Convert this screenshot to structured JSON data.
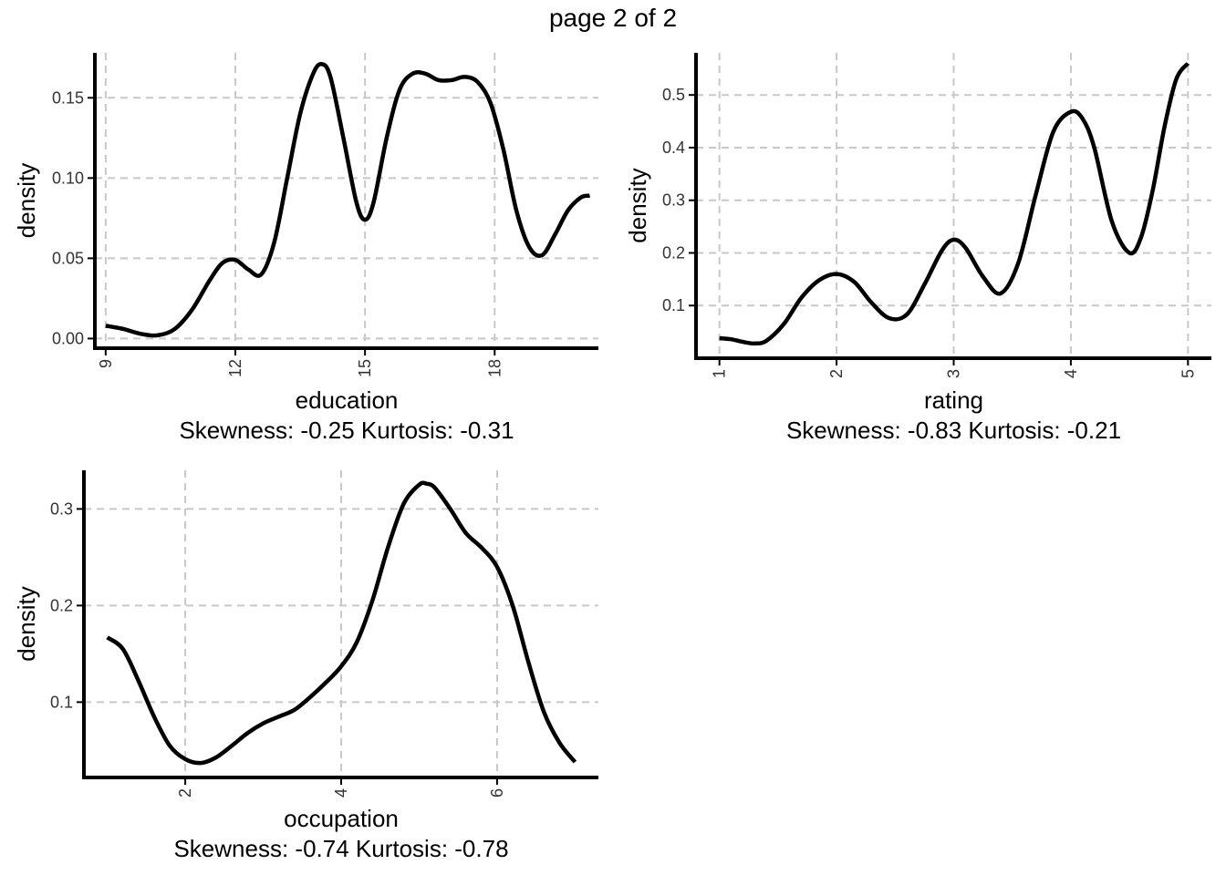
{
  "page": {
    "title": "page 2 of 2"
  },
  "style": {
    "line_color": "#000000",
    "grid_color": "#c8c8c8",
    "axis_color": "#000000",
    "tick_label_color": "#333333",
    "background": "#ffffff"
  },
  "chart_data": [
    {
      "type": "line",
      "title": "",
      "xlabel": "education",
      "ylabel": "density",
      "caption": "Skewness: -0.25 Kurtosis: -0.31",
      "xlim": [
        8.75,
        20.4
      ],
      "ylim": [
        -0.006,
        0.178
      ],
      "xticks": [
        9,
        12,
        15,
        18
      ],
      "xtick_labels": [
        "9",
        "12",
        "15",
        "18"
      ],
      "xtick_rotation": -90,
      "yticks": [
        0.0,
        0.05,
        0.1,
        0.15
      ],
      "ytick_labels": [
        "0.00",
        "0.05",
        "0.10",
        "0.15"
      ],
      "grid": true,
      "grid_style": "dashed",
      "series": [
        {
          "x": [
            9.0,
            9.4,
            9.8,
            10.2,
            10.6,
            11.0,
            11.4,
            11.7,
            12.0,
            12.3,
            12.6,
            12.9,
            13.2,
            13.5,
            13.8,
            14.0,
            14.2,
            14.5,
            14.8,
            15.0,
            15.2,
            15.5,
            15.8,
            16.1,
            16.4,
            16.7,
            17.0,
            17.3,
            17.6,
            17.9,
            18.2,
            18.5,
            18.8,
            19.1,
            19.4,
            19.7,
            20.0,
            20.2
          ],
          "y": [
            0.008,
            0.006,
            0.003,
            0.002,
            0.006,
            0.018,
            0.036,
            0.047,
            0.049,
            0.043,
            0.04,
            0.06,
            0.1,
            0.14,
            0.165,
            0.171,
            0.163,
            0.125,
            0.085,
            0.074,
            0.085,
            0.125,
            0.155,
            0.165,
            0.165,
            0.161,
            0.161,
            0.163,
            0.16,
            0.147,
            0.118,
            0.08,
            0.057,
            0.052,
            0.065,
            0.08,
            0.088,
            0.089
          ]
        }
      ]
    },
    {
      "type": "line",
      "title": "",
      "xlabel": "rating",
      "ylabel": "density",
      "caption": "Skewness: -0.83 Kurtosis: -0.21",
      "xlim": [
        0.8,
        5.2
      ],
      "ylim": [
        0.0,
        0.58
      ],
      "xticks": [
        1,
        2,
        3,
        4,
        5
      ],
      "xtick_labels": [
        "1",
        "2",
        "3",
        "4",
        "5"
      ],
      "xtick_rotation": -90,
      "yticks": [
        0.1,
        0.2,
        0.3,
        0.4,
        0.5
      ],
      "ytick_labels": [
        "0.1",
        "0.2",
        "0.3",
        "0.4",
        "0.5"
      ],
      "grid": true,
      "grid_style": "dashed",
      "series": [
        {
          "x": [
            1.0,
            1.1,
            1.2,
            1.3,
            1.4,
            1.55,
            1.7,
            1.85,
            2.0,
            2.15,
            2.3,
            2.45,
            2.6,
            2.75,
            2.9,
            3.0,
            3.1,
            3.25,
            3.4,
            3.55,
            3.7,
            3.85,
            4.0,
            4.1,
            4.2,
            4.35,
            4.5,
            4.6,
            4.7,
            4.8,
            4.9,
            5.0
          ],
          "y": [
            0.038,
            0.036,
            0.031,
            0.028,
            0.033,
            0.065,
            0.115,
            0.148,
            0.16,
            0.145,
            0.105,
            0.076,
            0.083,
            0.14,
            0.205,
            0.225,
            0.21,
            0.155,
            0.123,
            0.18,
            0.31,
            0.43,
            0.468,
            0.455,
            0.4,
            0.26,
            0.2,
            0.23,
            0.32,
            0.44,
            0.53,
            0.56
          ]
        }
      ]
    },
    {
      "type": "line",
      "title": "",
      "xlabel": "occupation",
      "ylabel": "density",
      "caption": "Skewness: -0.74 Kurtosis: -0.78",
      "xlim": [
        0.7,
        7.3
      ],
      "ylim": [
        0.022,
        0.34
      ],
      "xticks": [
        2,
        4,
        6
      ],
      "xtick_labels": [
        "2",
        "4",
        "6"
      ],
      "xtick_rotation": -90,
      "yticks": [
        0.1,
        0.2,
        0.3
      ],
      "ytick_labels": [
        "0.1",
        "0.2",
        "0.3"
      ],
      "grid": true,
      "grid_style": "dashed",
      "series": [
        {
          "x": [
            1.0,
            1.2,
            1.4,
            1.6,
            1.8,
            2.0,
            2.2,
            2.4,
            2.6,
            2.8,
            3.0,
            3.2,
            3.4,
            3.6,
            3.8,
            4.0,
            4.2,
            4.4,
            4.6,
            4.8,
            5.0,
            5.1,
            5.2,
            5.4,
            5.6,
            5.8,
            6.0,
            6.2,
            6.4,
            6.6,
            6.8,
            7.0
          ],
          "y": [
            0.167,
            0.155,
            0.122,
            0.085,
            0.055,
            0.041,
            0.037,
            0.043,
            0.055,
            0.068,
            0.078,
            0.085,
            0.092,
            0.105,
            0.12,
            0.137,
            0.162,
            0.205,
            0.26,
            0.305,
            0.325,
            0.326,
            0.322,
            0.3,
            0.275,
            0.26,
            0.24,
            0.2,
            0.142,
            0.09,
            0.058,
            0.038
          ]
        }
      ]
    }
  ]
}
